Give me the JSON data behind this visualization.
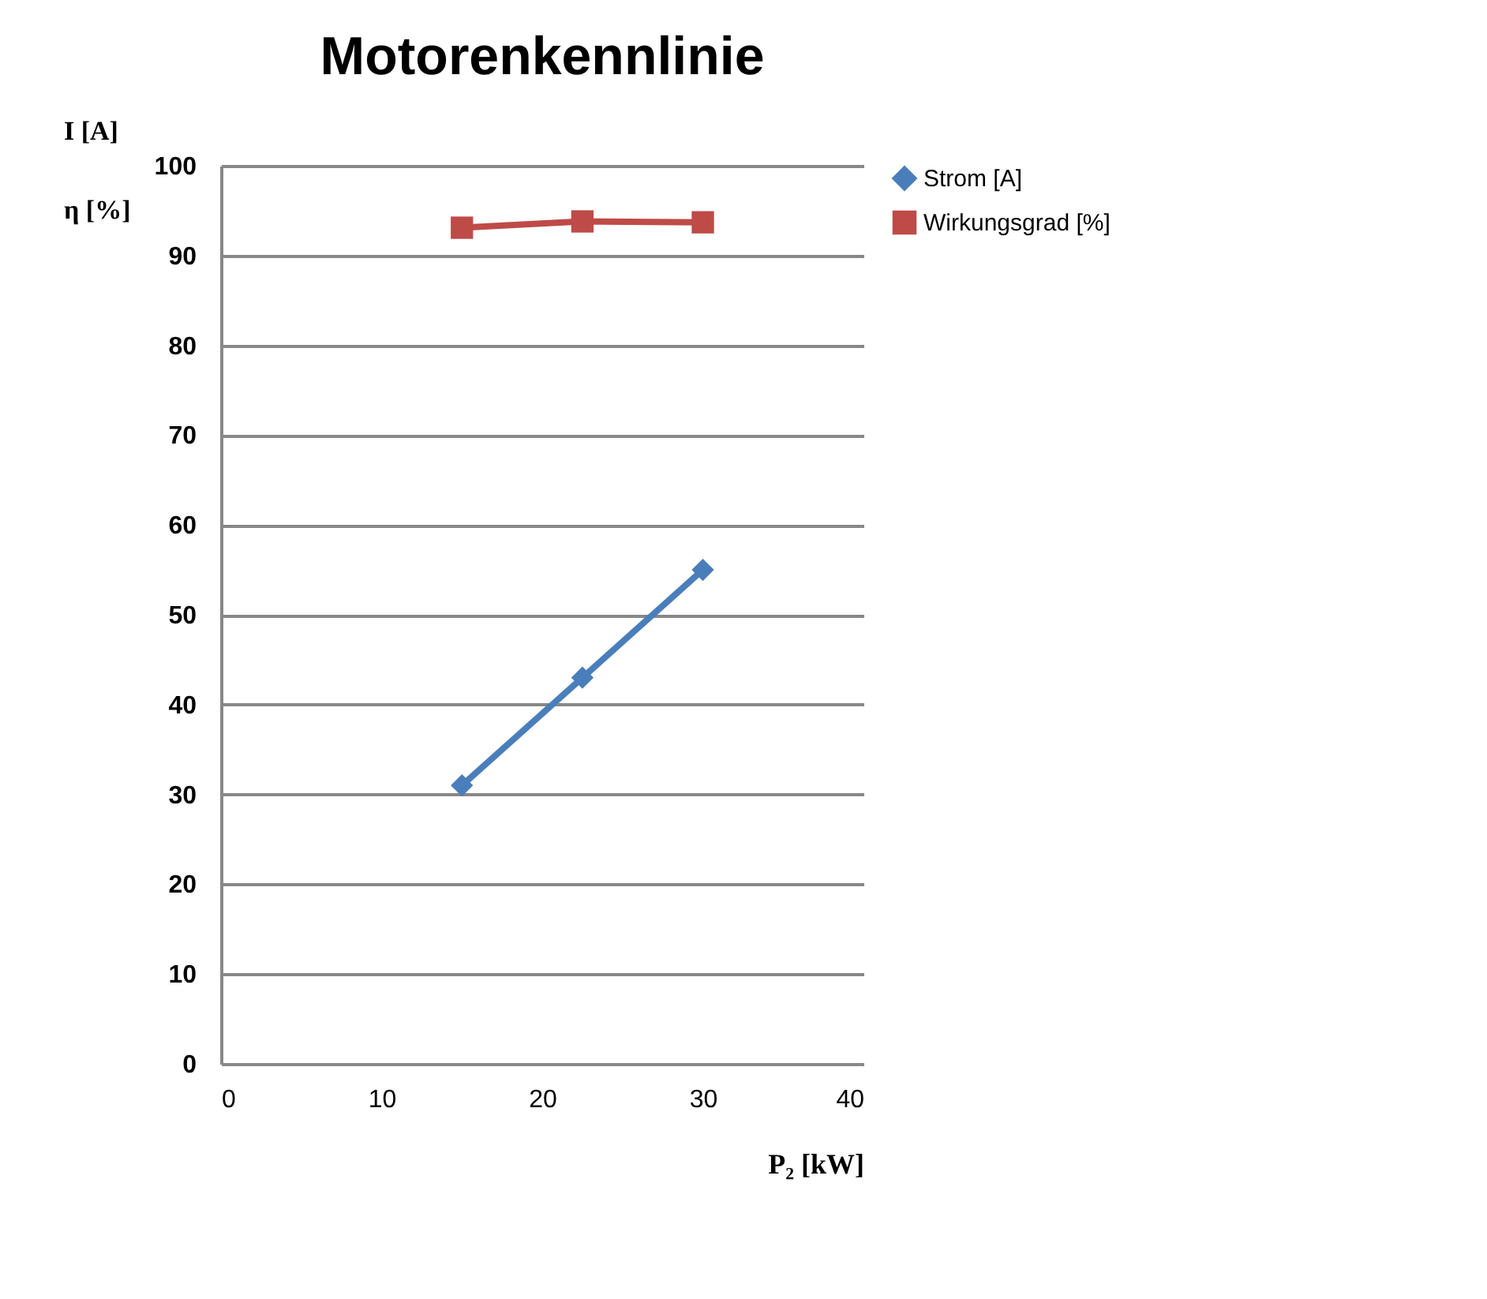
{
  "chart_data": {
    "type": "line",
    "title": "Motorenkennlinie",
    "xlabel": "P₂ [kW]",
    "ylabel": "I [A]\nη [%]",
    "x": [
      15,
      22.5,
      30
    ],
    "series": [
      {
        "name": "Strom  [A]",
        "color": "#4a7ebb",
        "values": [
          31,
          43,
          55
        ],
        "marker": "diamond"
      },
      {
        "name": "Wirkungsgrad  [%]",
        "color": "#be4b48",
        "values": [
          93.1,
          93.8,
          93.7
        ],
        "marker": "square"
      }
    ],
    "xlim": [
      0,
      40
    ],
    "xticks": [
      0,
      10,
      20,
      30,
      40
    ],
    "ylim": [
      0,
      100
    ],
    "yticks": [
      0,
      10,
      20,
      30,
      40,
      50,
      60,
      70,
      80,
      90,
      100
    ],
    "grid": "y",
    "legend": "right",
    "line_style": "solid"
  }
}
